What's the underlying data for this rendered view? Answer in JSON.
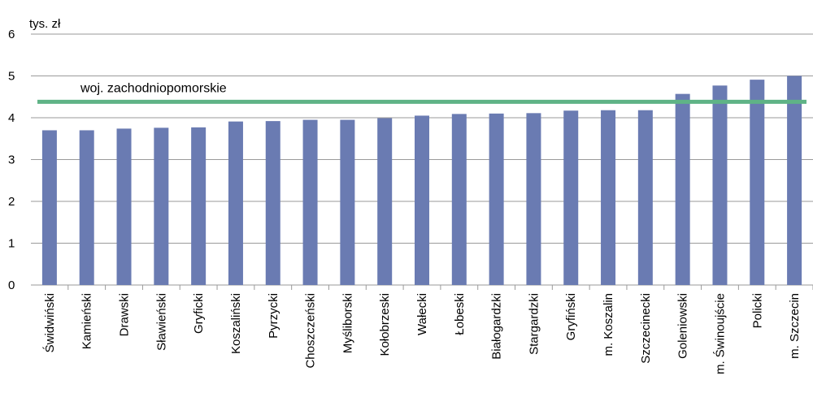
{
  "chart_data": {
    "type": "bar",
    "unit_label": "tys. zł",
    "categories": [
      "Świdwiński",
      "Kamieński",
      "Drawski",
      "Sławieński",
      "Gryficki",
      "Koszaliński",
      "Pyrzycki",
      "Choszczeński",
      "Myśliborski",
      "Kołobrzeski",
      "Wałecki",
      "Łobeski",
      "Białogardzki",
      "Stargardzki",
      "Gryfiński",
      "m. Koszalin",
      "Szczecinecki",
      "Goleniowski",
      "m. Świnoujście",
      "Policki",
      "m. Szczecin"
    ],
    "values": [
      3.7,
      3.7,
      3.74,
      3.76,
      3.77,
      3.91,
      3.92,
      3.95,
      3.95,
      3.99,
      4.05,
      4.09,
      4.1,
      4.11,
      4.17,
      4.18,
      4.18,
      4.57,
      4.77,
      4.91,
      5.0
    ],
    "ylim": [
      0,
      6
    ],
    "yticks": [
      "0",
      "1",
      "2",
      "3",
      "4",
      "5",
      "6"
    ],
    "grid": true,
    "bar_color": "#6a7bb2",
    "reference_line": {
      "label": "woj. zachodniopomorskie",
      "value": 4.38,
      "color": "#5fb386"
    }
  }
}
